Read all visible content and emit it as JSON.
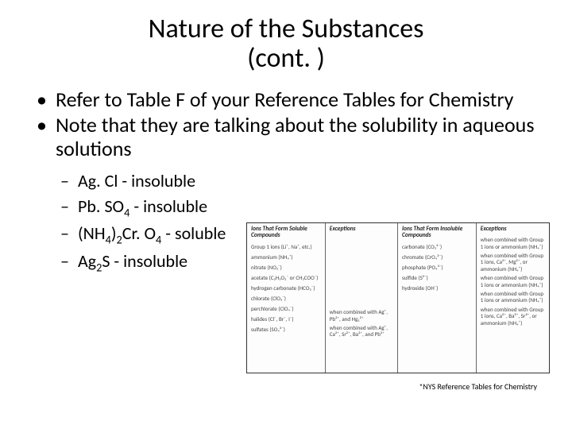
{
  "title_line1": "Nature of the Substances",
  "title_line2": "(cont. )",
  "bullets": {
    "b1": "Refer to Table F of your Reference Tables for Chemistry",
    "b2": "Note that they are talking about the solubility in aqueous solutions"
  },
  "sub": {
    "s1a": "Ag. Cl - insoluble",
    "s2a": "Pb. SO",
    "s2b": "4",
    "s2c": " - insoluble",
    "s3a": "(NH",
    "s3b": "4",
    "s3c": ")",
    "s3d": "2",
    "s3e": "Cr. O",
    "s3f": "4",
    "s3g": " - soluble",
    "s4a": "Ag",
    "s4b": "2",
    "s4c": "S - insoluble"
  },
  "table": {
    "col1_hdr": "Ions That Form Soluble Compounds",
    "col2_hdr": "Exceptions",
    "col3_hdr": "Ions That Form Insoluble Compounds",
    "col4_hdr": "Exceptions",
    "col1": [
      "Group 1 ions (Li⁺, Na⁺, etc.)",
      "ammonium (NH₄⁺)",
      "nitrate (NO₃⁻)",
      "acetate (C₂H₃O₂⁻ or CH₃COO⁻)",
      "hydrogen carbonate (HCO₃⁻)",
      "chlorate (ClO₃⁻)",
      "perchlorate (ClO₄⁻)",
      "halides (Cl⁻, Br⁻, I⁻)",
      "sulfates (SO₄²⁻)"
    ],
    "col2": [
      "",
      "",
      "",
      "",
      "",
      "",
      "",
      "when combined with Ag⁺, Pb²⁺, and Hg₂²⁺",
      "when combined with Ag⁺, Ca²⁺, Sr²⁺, Ba²⁺, and Pb²⁺"
    ],
    "col3": [
      "carbonate (CO₃²⁻)",
      "chromate (CrO₄²⁻)",
      "phosphate (PO₄³⁻)",
      "sulfide (S²⁻)",
      "hydroxide (OH⁻)"
    ],
    "col4": [
      "when combined with Group 1 ions or ammonium (NH₄⁺)",
      "when combined with Group 1 ions, Ca²⁺, Mg²⁺, or ammonium (NH₄⁺)",
      "when combined with Group 1 ions or ammonium (NH₄⁺)",
      "when combined with Group 1 ions or ammonium (NH₄⁺)",
      "when combined with Group 1 ions, Ca²⁺, Ba²⁺, Sr²⁺, or ammonium (NH₄⁺)"
    ]
  },
  "caption": "*NYS Reference Tables for Chemistry"
}
